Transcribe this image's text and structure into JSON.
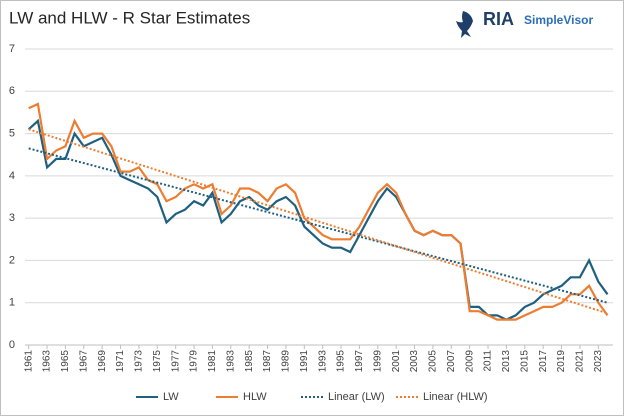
{
  "chart_data": {
    "type": "line",
    "title": "LW and HLW - R Star Estimates",
    "logo": {
      "brand": "RIA",
      "product": "SimpleVisor"
    },
    "xlim": [
      1960.6,
      2024.6
    ],
    "xticks": [
      1961,
      1963,
      1965,
      1967,
      1969,
      1971,
      1973,
      1975,
      1977,
      1979,
      1981,
      1983,
      1985,
      1987,
      1989,
      1991,
      1993,
      1995,
      1997,
      1999,
      2001,
      2003,
      2005,
      2007,
      2009,
      2011,
      2013,
      2015,
      2017,
      2019,
      2021,
      2023
    ],
    "ylim": [
      0,
      7
    ],
    "yticks": [
      0,
      1,
      2,
      3,
      4,
      5,
      6,
      7
    ],
    "grid": true,
    "legend": "bottom",
    "series": [
      {
        "name": "LW",
        "color": "#1f5f7f",
        "dash": "solid",
        "x": [
          1961,
          1962,
          1963,
          1964,
          1965,
          1966,
          1967,
          1968,
          1969,
          1970,
          1971,
          1972,
          1973,
          1974,
          1975,
          1976,
          1977,
          1978,
          1979,
          1980,
          1981,
          1982,
          1983,
          1984,
          1985,
          1986,
          1987,
          1988,
          1989,
          1990,
          1991,
          1992,
          1993,
          1994,
          1995,
          1996,
          1997,
          1998,
          1999,
          2000,
          2001,
          2002,
          2003,
          2004,
          2005,
          2006,
          2007,
          2008,
          2009,
          2010,
          2011,
          2012,
          2013,
          2014,
          2015,
          2016,
          2017,
          2018,
          2019,
          2020,
          2021,
          2022,
          2023,
          2024
        ],
        "values": [
          5.1,
          5.3,
          4.2,
          4.4,
          4.4,
          5.0,
          4.7,
          4.8,
          4.9,
          4.5,
          4.0,
          3.9,
          3.8,
          3.7,
          3.5,
          2.9,
          3.1,
          3.2,
          3.4,
          3.3,
          3.6,
          2.9,
          3.1,
          3.4,
          3.5,
          3.3,
          3.2,
          3.4,
          3.5,
          3.3,
          2.8,
          2.6,
          2.4,
          2.3,
          2.3,
          2.2,
          2.6,
          3.0,
          3.4,
          3.7,
          3.5,
          3.1,
          2.7,
          2.6,
          2.7,
          2.6,
          2.6,
          2.4,
          0.9,
          0.9,
          0.7,
          0.7,
          0.6,
          0.7,
          0.9,
          1.0,
          1.2,
          1.3,
          1.4,
          1.6,
          1.6,
          2.0,
          1.5,
          1.2
        ]
      },
      {
        "name": "HLW",
        "color": "#ed7d31",
        "dash": "solid",
        "x": [
          1961,
          1962,
          1963,
          1964,
          1965,
          1966,
          1967,
          1968,
          1969,
          1970,
          1971,
          1972,
          1973,
          1974,
          1975,
          1976,
          1977,
          1978,
          1979,
          1980,
          1981,
          1982,
          1983,
          1984,
          1985,
          1986,
          1987,
          1988,
          1989,
          1990,
          1991,
          1992,
          1993,
          1994,
          1995,
          1996,
          1997,
          1998,
          1999,
          2000,
          2001,
          2002,
          2003,
          2004,
          2005,
          2006,
          2007,
          2008,
          2009,
          2010,
          2011,
          2012,
          2013,
          2014,
          2015,
          2016,
          2017,
          2018,
          2019,
          2020,
          2021,
          2022,
          2023,
          2024
        ],
        "values": [
          5.6,
          5.7,
          4.4,
          4.6,
          4.7,
          5.3,
          4.9,
          5.0,
          5.0,
          4.7,
          4.1,
          4.1,
          4.2,
          3.9,
          3.8,
          3.4,
          3.5,
          3.7,
          3.8,
          3.7,
          3.8,
          3.1,
          3.3,
          3.7,
          3.7,
          3.6,
          3.4,
          3.7,
          3.8,
          3.6,
          3.0,
          2.8,
          2.6,
          2.5,
          2.5,
          2.5,
          2.8,
          3.2,
          3.6,
          3.8,
          3.6,
          3.1,
          2.7,
          2.6,
          2.7,
          2.6,
          2.6,
          2.4,
          0.8,
          0.8,
          0.7,
          0.6,
          0.6,
          0.6,
          0.7,
          0.8,
          0.9,
          0.9,
          1.0,
          1.2,
          1.2,
          1.4,
          1.0,
          0.7
        ]
      },
      {
        "name": "Linear (LW)",
        "color": "#1f5f7f",
        "dash": "dotted",
        "x": [
          1961,
          2024
        ],
        "values": [
          4.65,
          1.0
        ]
      },
      {
        "name": "Linear (HLW)",
        "color": "#ed7d31",
        "dash": "dotted",
        "x": [
          1961,
          2024
        ],
        "values": [
          5.1,
          0.75
        ]
      }
    ]
  }
}
